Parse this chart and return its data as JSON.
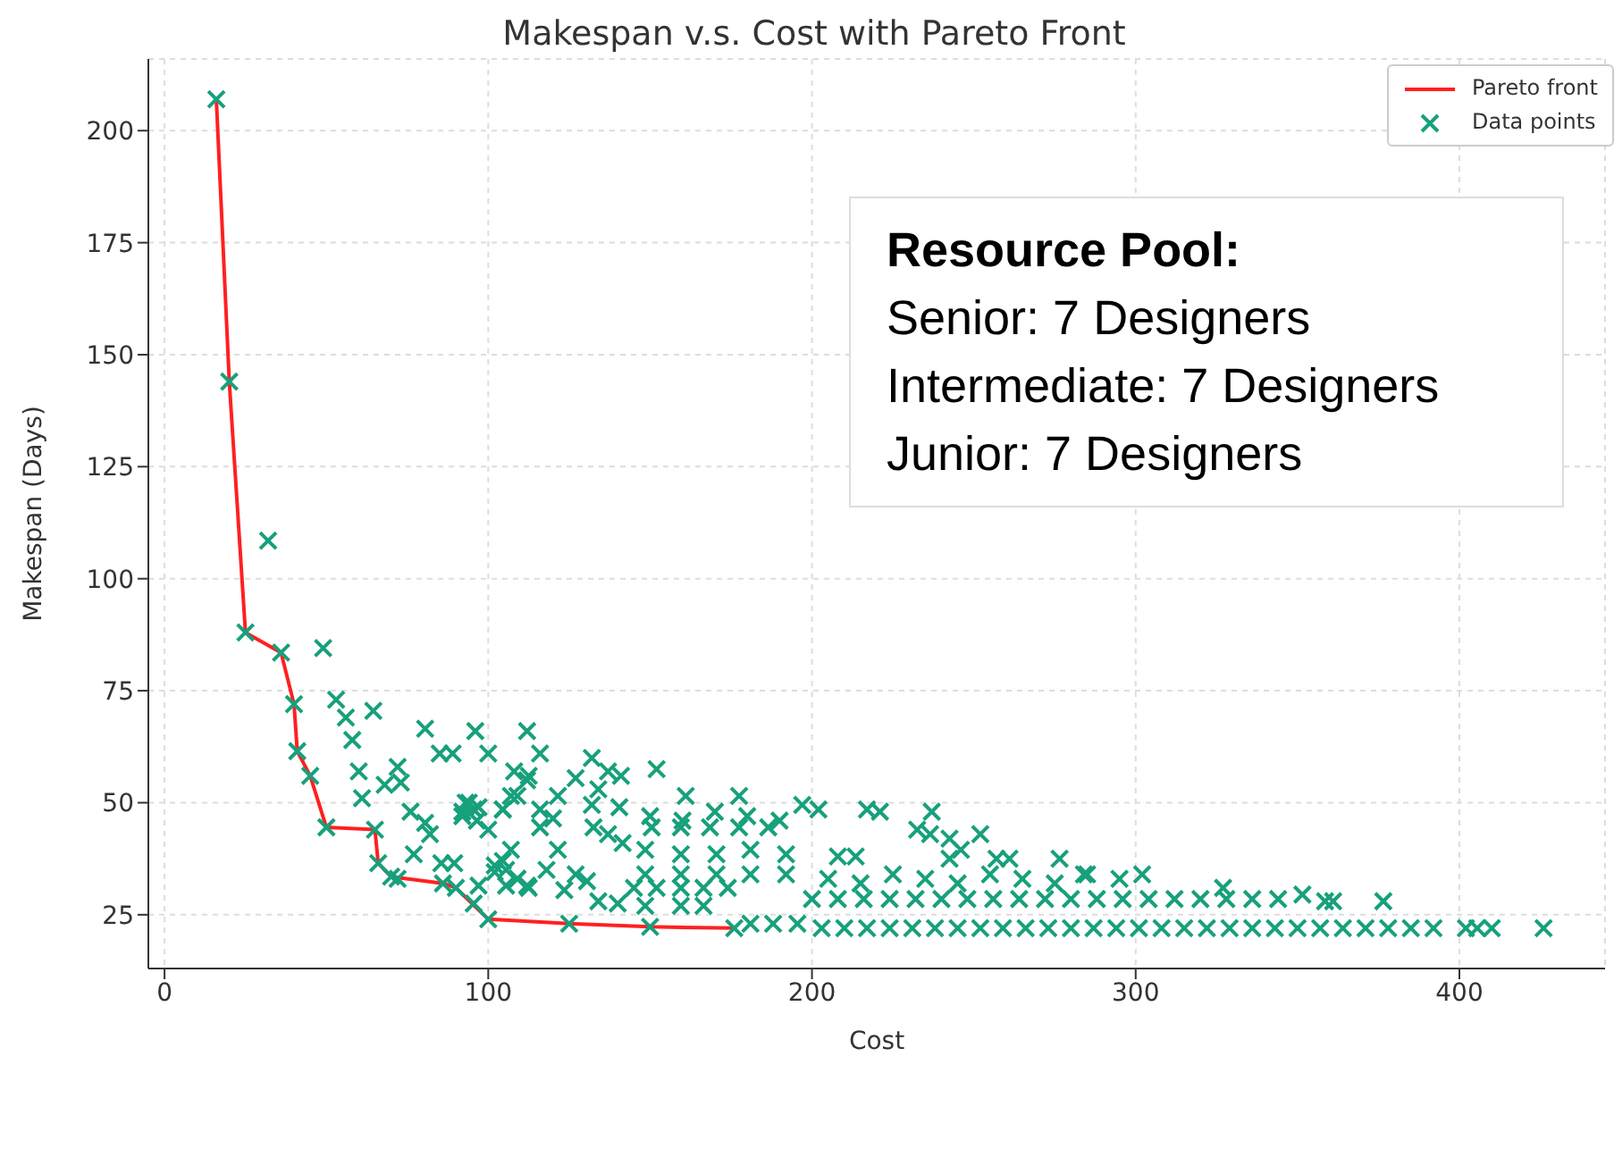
{
  "chart_data": {
    "type": "scatter",
    "title": "Makespan v.s. Cost with Pareto Front",
    "xlabel": "Cost",
    "ylabel": "Makespan (Days)",
    "xlim": [
      -5,
      445
    ],
    "xticks": [
      0,
      100,
      200,
      300,
      400
    ],
    "ylim": [
      13,
      216
    ],
    "yticks": [
      25,
      50,
      75,
      100,
      125,
      150,
      175,
      200
    ],
    "grid": true,
    "legend": "top right",
    "line_style": "solid",
    "annotations": [
      "Resource Pool:",
      "Senior: 7 Designers",
      "Intermediate: 7 Designers",
      "Junior: 7 Designers"
    ],
    "series": [
      {
        "name": "Pareto front",
        "type": "line",
        "color": "#ff2020",
        "x": [
          16,
          20,
          25,
          36,
          40,
          41,
          45,
          50,
          65,
          66,
          70,
          86,
          90,
          100,
          125,
          150,
          176
        ],
        "values": [
          207,
          144,
          88,
          83.5,
          72,
          61.5,
          56,
          44.5,
          44,
          36.5,
          33.5,
          32,
          31,
          24,
          23,
          22.3,
          22
        ]
      },
      {
        "name": "Data points",
        "color": "#17a07c",
        "marker": "cross",
        "x": [
          16,
          20,
          25,
          36,
          40,
          41,
          45,
          50,
          65,
          66,
          70,
          86,
          90,
          100,
          125,
          150,
          176,
          32,
          49,
          53,
          56,
          64.5,
          58,
          60,
          61,
          68,
          72,
          73,
          76,
          80.5,
          80.5,
          82,
          85,
          89,
          77,
          85.5,
          89.5,
          72,
          96,
          100,
          94,
          97,
          92,
          96.5,
          100,
          104.5,
          107,
          108,
          112,
          112,
          97,
          95.5,
          102,
          104.5,
          107,
          105.5,
          109,
          112,
          116,
          112.5,
          132,
          137,
          141,
          152,
          127,
          134,
          121.5,
          109,
          93,
          95.5,
          92,
          104.5,
          116,
          120,
          132,
          140.5,
          161,
          177.5,
          150.5,
          159.5,
          168.5,
          177.5,
          186.5,
          132.5,
          137,
          116,
          141.5,
          148.5,
          159.5,
          170.5,
          181,
          192,
          121.5,
          102,
          105.5,
          109,
          118,
          127,
          130.5,
          123.5,
          112.5,
          134,
          140,
          145,
          152,
          159.5,
          166.5,
          174,
          148.5,
          159.5,
          170.5,
          181,
          192,
          148.5,
          159.5,
          166.5,
          181,
          188,
          195.5,
          203,
          210,
          217,
          224,
          231,
          238,
          245,
          252,
          259,
          266,
          273,
          280,
          287,
          294,
          301,
          308,
          315,
          322,
          329,
          336,
          343,
          350,
          357,
          364,
          371,
          378,
          385,
          392,
          402,
          405.5,
          410,
          426,
          200,
          208,
          216,
          224,
          232,
          240,
          248,
          256,
          264,
          272,
          280,
          288,
          296,
          304,
          312,
          320,
          328,
          336,
          344,
          351.5,
          358.5,
          361,
          376.5,
          205,
          215,
          225,
          235,
          245,
          255,
          265,
          275,
          285,
          295,
          302,
          327,
          276.5,
          257,
          261,
          252,
          237,
          217,
          221,
          197,
          202,
          232.5,
          236.5,
          242.5,
          246,
          242.5,
          284,
          208,
          213.5,
          150,
          160,
          170,
          180,
          190
        ],
        "values": [
          207,
          144,
          88,
          83.5,
          72,
          61.5,
          56,
          44.5,
          44,
          36.5,
          33.5,
          32,
          31,
          24,
          23,
          22.3,
          22,
          108.5,
          84.5,
          73,
          69,
          70.5,
          64,
          57,
          51,
          54,
          58,
          54.5,
          48,
          66.5,
          45.5,
          43,
          61,
          61,
          38.5,
          36.5,
          36.5,
          33,
          66,
          61,
          50,
          49,
          47,
          46,
          44,
          48.5,
          51.5,
          57,
          66,
          55,
          31.5,
          27.5,
          34.5,
          37,
          39.5,
          31.5,
          33,
          31.5,
          61,
          56,
          60,
          57,
          56,
          57.5,
          55.5,
          53,
          51.5,
          51.5,
          50,
          48.5,
          48,
          48.5,
          48.5,
          46.5,
          49.5,
          49,
          51.5,
          51.5,
          44.5,
          44.5,
          44.5,
          44.5,
          44.5,
          44.5,
          43,
          44.5,
          41,
          39.5,
          38.5,
          38.5,
          39.5,
          38.5,
          39.5,
          36,
          35,
          33,
          35,
          34,
          32.5,
          30.5,
          31,
          28,
          27.5,
          31,
          31,
          31,
          31,
          31,
          34,
          34,
          34,
          34,
          34,
          27,
          27,
          27,
          23,
          23,
          23,
          22,
          22,
          22,
          22,
          22,
          22,
          22,
          22,
          22,
          22,
          22,
          22,
          22,
          22,
          22,
          22,
          22,
          22,
          22,
          22,
          22,
          22,
          22,
          22,
          22,
          22,
          22,
          22,
          22,
          22,
          22,
          22,
          28.5,
          28.5,
          28.5,
          28.5,
          28.5,
          28.5,
          28.5,
          28.5,
          28.5,
          28.5,
          28.5,
          28.5,
          28.5,
          28.5,
          28.5,
          28.5,
          28.5,
          28.5,
          28.5,
          29.5,
          28,
          28,
          28,
          33,
          32,
          34,
          33,
          32,
          34,
          33,
          32,
          34,
          33,
          34,
          31,
          37.5,
          37.5,
          37.5,
          43,
          48,
          48.5,
          48,
          49.5,
          48.5,
          44,
          43,
          42,
          39.5,
          37.5,
          34,
          38,
          38,
          47,
          46,
          48,
          47,
          46
        ]
      }
    ]
  }
}
